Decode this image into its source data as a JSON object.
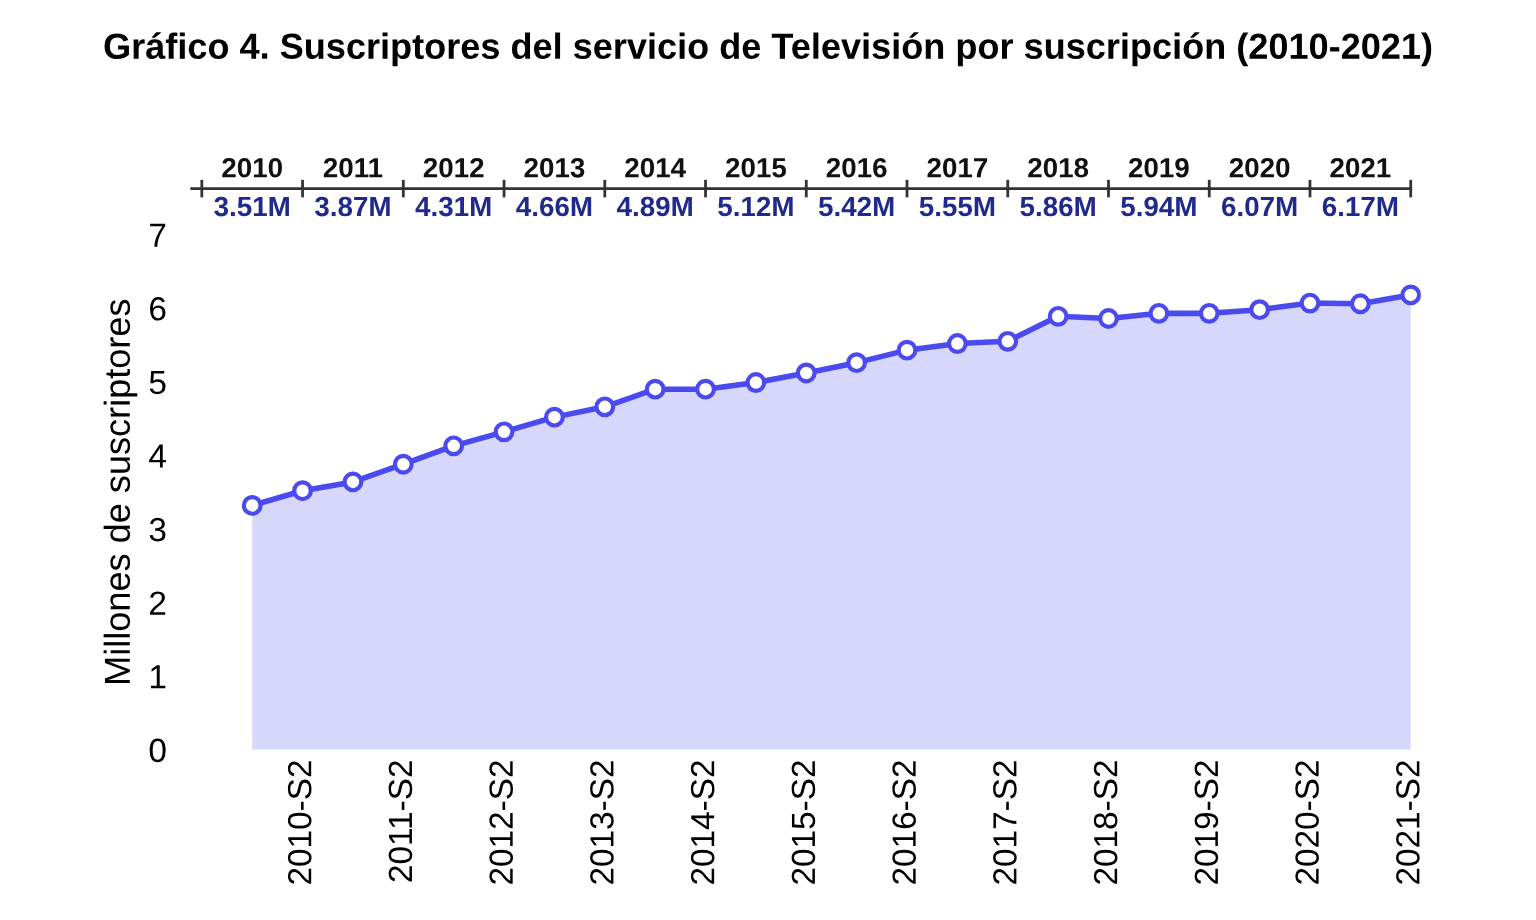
{
  "chart_data": {
    "type": "area",
    "title": "Gráfico 4. Suscriptores del servicio de Televisión por suscripción (2010-2021)",
    "ylabel": "Millones de suscriptores",
    "categories": [
      null,
      "2010-S2",
      null,
      "2011-S2",
      null,
      "2012-S2",
      null,
      "2013-S2",
      null,
      "2014-S2",
      null,
      "2015-S2",
      null,
      "2016-S2",
      null,
      "2017-S2",
      null,
      "2018-S2",
      null,
      "2019-S2",
      null,
      "2020-S2",
      null,
      "2021-S2"
    ],
    "series": [
      {
        "color": "#4a4af0",
        "values": [
          3.32,
          3.52,
          3.64,
          3.88,
          4.13,
          4.32,
          4.52,
          4.66,
          4.9,
          4.9,
          4.99,
          5.12,
          5.26,
          5.43,
          5.52,
          5.55,
          5.89,
          5.86,
          5.93,
          5.93,
          5.98,
          6.07,
          6.06,
          6.18
        ]
      }
    ],
    "ylim": [
      0,
      7
    ],
    "yticks": [
      0,
      1,
      2,
      3,
      4,
      5,
      6,
      7
    ],
    "marker": "circle",
    "grid": false,
    "annotations": [
      "2010",
      "3.51M",
      "2011",
      "3.87M",
      "2012",
      "4.31M",
      "2013",
      "4.66M",
      "2014",
      "4.89M",
      "2015",
      "5.12M",
      "2016",
      "5.42M",
      "2017",
      "5.55M",
      "2018",
      "5.86M",
      "2019",
      "5.94M",
      "2020",
      "6.07M",
      "2021",
      "6.17M"
    ]
  }
}
